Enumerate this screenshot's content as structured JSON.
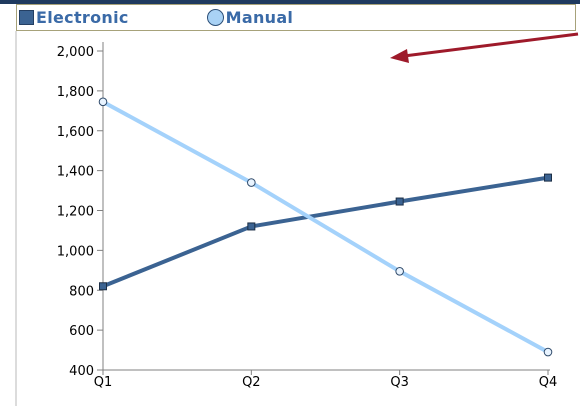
{
  "legend": {
    "electronic_label": "Electronic",
    "manual_label": "Manual"
  },
  "colors": {
    "electronic": "#3b6392",
    "manual": "#a4d2fb",
    "annotation_arrow": "#9e1a2a",
    "axis": "#808080"
  },
  "chart_data": {
    "type": "line",
    "categories": [
      "Q1",
      "Q2",
      "Q3",
      "Q4"
    ],
    "series": [
      {
        "name": "Electronic",
        "values": [
          820,
          1120,
          1245,
          1365
        ],
        "marker": "square"
      },
      {
        "name": "Manual",
        "values": [
          1745,
          1340,
          895,
          490
        ],
        "marker": "circle"
      }
    ],
    "y_ticks": [
      "400",
      "600",
      "800",
      "1,000",
      "1,200",
      "1,400",
      "1,600",
      "1,800",
      "2,000"
    ],
    "ylim": [
      400,
      2000
    ],
    "grid": false,
    "legend_position": "top",
    "annotations": [
      {
        "type": "arrow",
        "direction": "left"
      }
    ]
  }
}
